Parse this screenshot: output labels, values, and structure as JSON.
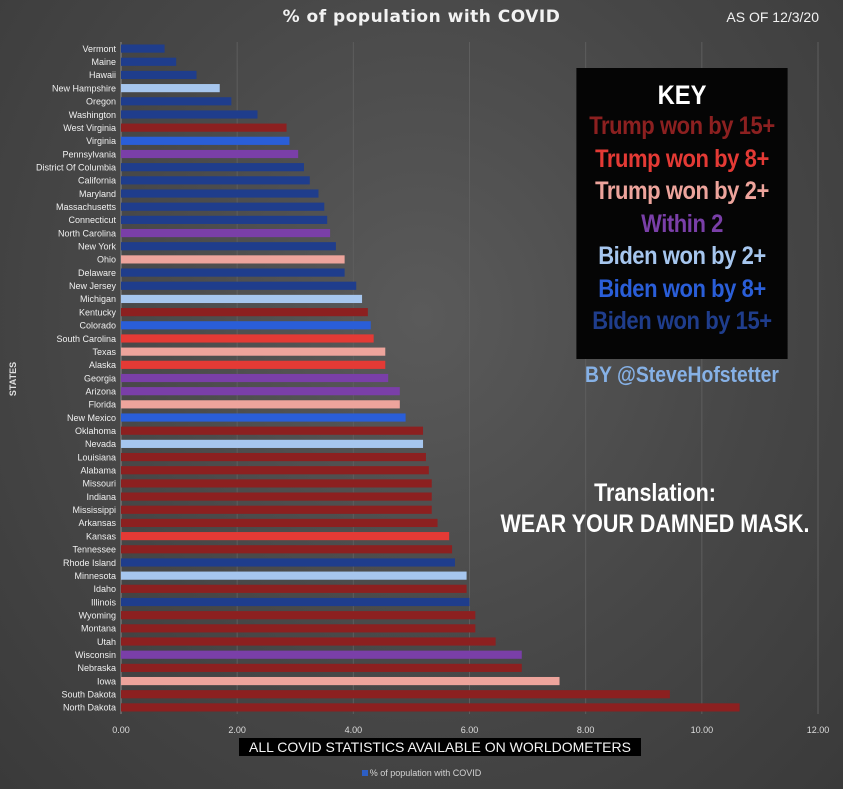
{
  "header": {
    "title": "% of population with COVID",
    "as_of": "AS OF 12/3/20"
  },
  "key": {
    "title": "KEY",
    "items": [
      {
        "label": "Trump won by 15+",
        "color": "#8c2020"
      },
      {
        "label": "Trump won by 8+",
        "color": "#e43a35"
      },
      {
        "label": "Trump won by 2+",
        "color": "#eda49c"
      },
      {
        "label": "Within 2",
        "color": "#7a3fa8"
      },
      {
        "label": "Biden won by 2+",
        "color": "#a6c6ee"
      },
      {
        "label": "Biden won by 8+",
        "color": "#2a5ed8"
      },
      {
        "label": "Biden won by 15+",
        "color": "#1f3d8c"
      }
    ]
  },
  "byline": "BY @SteveHofstetter",
  "translation": [
    "Translation:",
    "WEAR YOUR DAMNED MASK."
  ],
  "footer_banner": "ALL COVID STATISTICS AVAILABLE ON WORLDOMETERS",
  "legend": {
    "label": "% of population with COVID",
    "color": "#2d5ec4"
  },
  "chart_data": {
    "type": "bar",
    "orientation": "horizontal",
    "title": "% of population with COVID",
    "ylabel": "STATES",
    "xlabel": "",
    "xlim": [
      0,
      12
    ],
    "xticks": [
      "0.00",
      "2.00",
      "4.00",
      "6.00",
      "8.00",
      "10.00",
      "12.00"
    ],
    "grid": true,
    "legend": "bottom",
    "categories": [
      "Vermont",
      "Maine",
      "Hawaii",
      "New Hampshire",
      "Oregon",
      "Washington",
      "West Virginia",
      "Virginia",
      "Pennsylvania",
      "District Of Columbia",
      "California",
      "Maryland",
      "Massachusetts",
      "Connecticut",
      "North Carolina",
      "New York",
      "Ohio",
      "Delaware",
      "New Jersey",
      "Michigan",
      "Kentucky",
      "Colorado",
      "South Carolina",
      "Texas",
      "Alaska",
      "Georgia",
      "Arizona",
      "Florida",
      "New Mexico",
      "Oklahoma",
      "Nevada",
      "Louisiana",
      "Alabama",
      "Missouri",
      "Indiana",
      "Mississippi",
      "Arkansas",
      "Kansas",
      "Tennessee",
      "Rhode Island",
      "Minnesota",
      "Idaho",
      "Illinois",
      "Wyoming",
      "Montana",
      "Utah",
      "Wisconsin",
      "Nebraska",
      "Iowa",
      "South Dakota",
      "North Dakota"
    ],
    "values": [
      0.75,
      0.95,
      1.3,
      1.7,
      1.9,
      2.35,
      2.85,
      2.9,
      3.05,
      3.15,
      3.25,
      3.4,
      3.5,
      3.55,
      3.6,
      3.7,
      3.85,
      3.85,
      4.05,
      4.15,
      4.25,
      4.3,
      4.35,
      4.55,
      4.55,
      4.6,
      4.8,
      4.8,
      4.9,
      5.2,
      5.2,
      5.25,
      5.3,
      5.35,
      5.35,
      5.35,
      5.45,
      5.65,
      5.7,
      5.75,
      5.95,
      5.95,
      6.0,
      6.1,
      6.1,
      6.45,
      6.9,
      6.9,
      7.55,
      9.45,
      10.65
    ],
    "groups": [
      "biden15",
      "biden15",
      "biden15",
      "biden2",
      "biden15",
      "biden15",
      "trump15",
      "biden8",
      "within2",
      "biden15",
      "biden15",
      "biden15",
      "biden15",
      "biden15",
      "within2",
      "biden15",
      "trump2",
      "biden15",
      "biden15",
      "biden2",
      "trump15",
      "biden8",
      "trump8",
      "trump2",
      "trump8",
      "within2",
      "within2",
      "trump2",
      "biden8",
      "trump15",
      "biden2",
      "trump15",
      "trump15",
      "trump15",
      "trump15",
      "trump15",
      "trump15",
      "trump8",
      "trump15",
      "biden15",
      "biden2",
      "trump15",
      "biden15",
      "trump15",
      "trump15",
      "trump15",
      "within2",
      "trump15",
      "trump2",
      "trump15",
      "trump15"
    ],
    "group_colors": {
      "trump15": "#8c2020",
      "trump8": "#e43a35",
      "trump2": "#eda49c",
      "within2": "#7a3fa8",
      "biden2": "#a6c6ee",
      "biden8": "#2a5ed8",
      "biden15": "#1f3d8c"
    }
  }
}
